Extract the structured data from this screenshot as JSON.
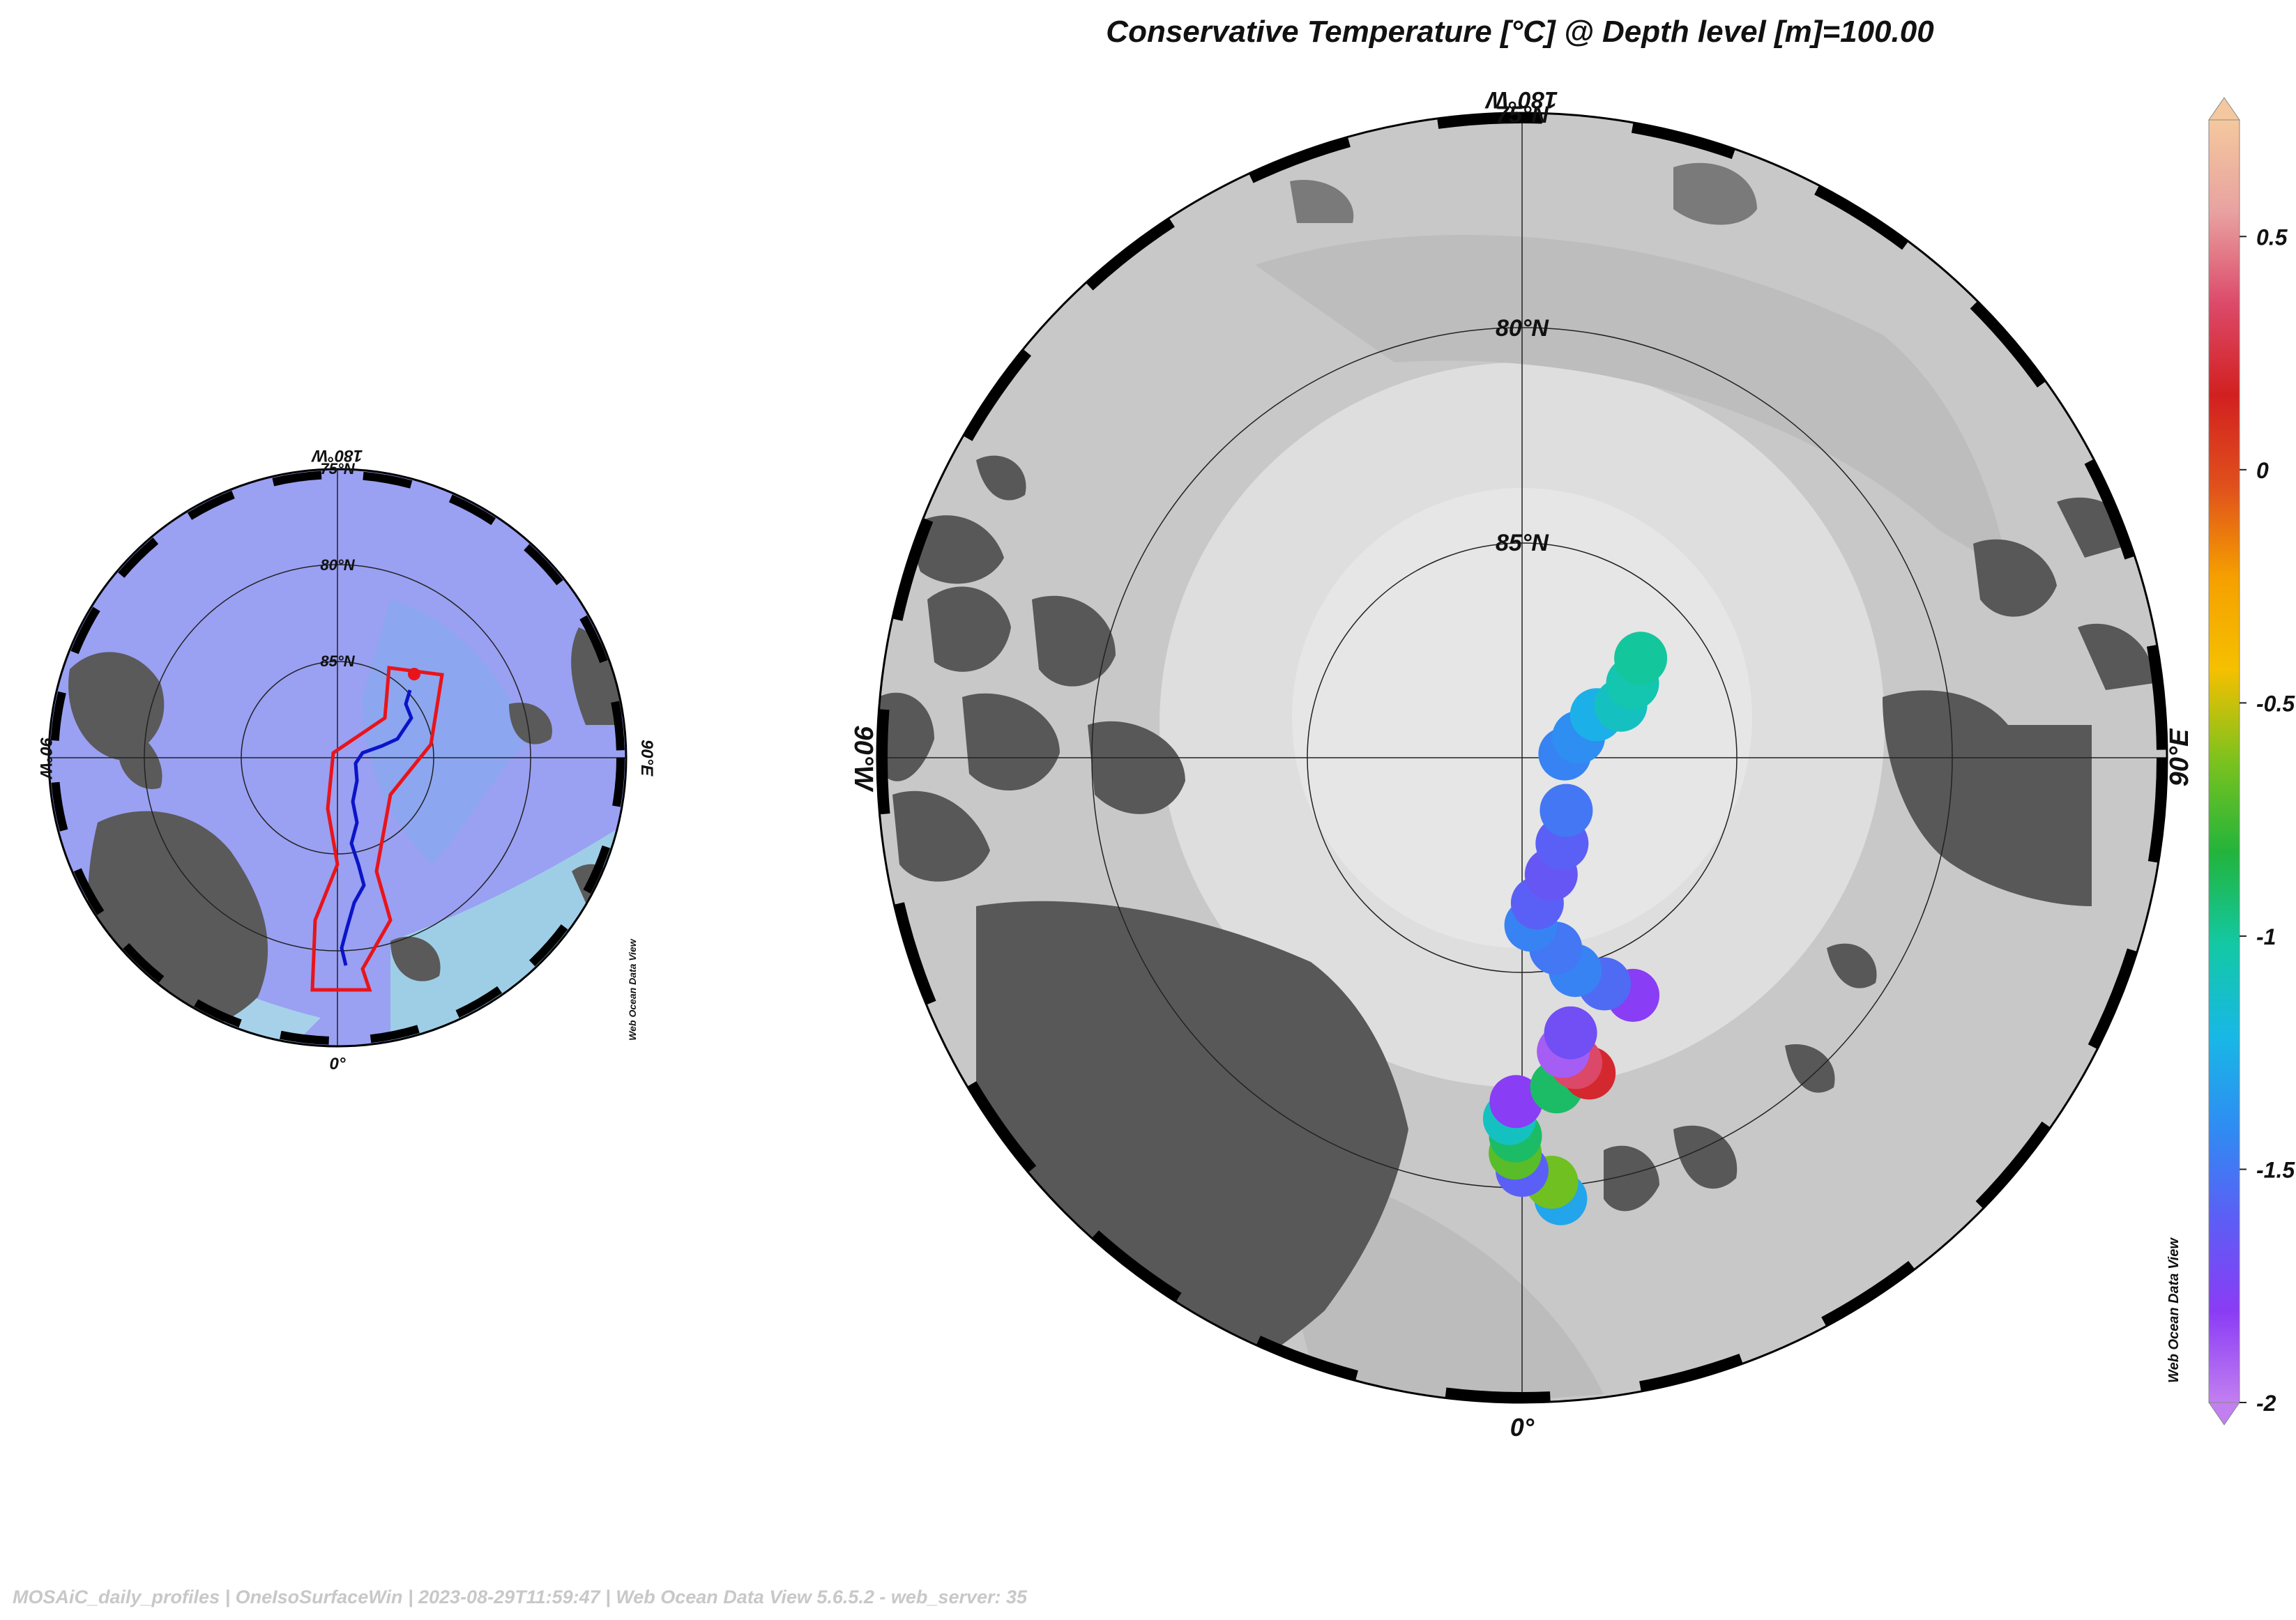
{
  "title": "Conservative Temperature [°C] @ Depth level [m]=100.00",
  "main_map": {
    "labels": {
      "top": "180°W",
      "bottom": "0°",
      "left": "90°W",
      "right": "90°E"
    },
    "circles": [
      "75°N",
      "80°N",
      "85°N"
    ]
  },
  "overview_map": {
    "labels": {
      "top": "180°W",
      "bottom": "0°",
      "left": "90°W",
      "right": "90°E"
    },
    "circles": [
      "75°N",
      "80°N",
      "85°N"
    ],
    "watermark": "Web Ocean Data View"
  },
  "colorbar": {
    "ticks": [
      "0.5",
      "0",
      "-0.5",
      "-1",
      "-1.5",
      "-2"
    ],
    "tick_values": [
      0.5,
      0,
      -0.5,
      -1,
      -1.5,
      -2
    ],
    "min": -2,
    "max": 0.75,
    "watermark": "Web Ocean Data View",
    "colors": [
      "#c27ff0",
      "#8a3cf5",
      "#5c5ef5",
      "#2f8cf2",
      "#18b8e6",
      "#13c8a4",
      "#22b43c",
      "#7bc21e",
      "#f5c000",
      "#f5a000",
      "#e0501c",
      "#d22020",
      "#dc4a6a",
      "#e8a2a0",
      "#f4c89e"
    ]
  },
  "footer": "MOSAiC_daily_profiles  |  OneIsoSurfaceWin  |  2023-08-29T11:59:47  |  Web Ocean Data View 5.6.5.2 - web_server: 35",
  "chart_data": {
    "type": "scatter",
    "title": "Conservative Temperature [°C] @ Depth level [m]=100.00",
    "projection": "north-polar-stereographic",
    "lat_range": [
      75,
      90
    ],
    "color_variable": "Conservative Temperature [°C]",
    "color_range": [
      -2,
      0.75
    ],
    "points": [
      {
        "lon": 5,
        "lat": 79.7,
        "value": -1.3
      },
      {
        "lon": 4,
        "lat": 80.1,
        "value": -0.65
      },
      {
        "lon": 0,
        "lat": 80.4,
        "value": -1.6
      },
      {
        "lon": -1,
        "lat": 80.8,
        "value": -0.7
      },
      {
        "lon": -1,
        "lat": 81.2,
        "value": -0.9
      },
      {
        "lon": -2,
        "lat": 81.6,
        "value": -1.1
      },
      {
        "lon": -1,
        "lat": 82.0,
        "value": -1.8
      },
      {
        "lon": 6,
        "lat": 82.3,
        "value": -0.9
      },
      {
        "lon": 12,
        "lat": 82.5,
        "value": 0.2
      },
      {
        "lon": 10,
        "lat": 82.8,
        "value": 0.35
      },
      {
        "lon": 8,
        "lat": 83.1,
        "value": -1.9
      },
      {
        "lon": 10,
        "lat": 83.5,
        "value": -1.7
      },
      {
        "lon": 25,
        "lat": 83.9,
        "value": -1.8
      },
      {
        "lon": 20,
        "lat": 84.4,
        "value": -1.55
      },
      {
        "lon": 14,
        "lat": 84.9,
        "value": -1.45
      },
      {
        "lon": 10,
        "lat": 85.5,
        "value": -1.5
      },
      {
        "lon": 3,
        "lat": 86.1,
        "value": -1.45
      },
      {
        "lon": 6,
        "lat": 86.6,
        "value": -1.6
      },
      {
        "lon": 14,
        "lat": 87.2,
        "value": -1.65
      },
      {
        "lon": 25,
        "lat": 87.8,
        "value": -1.6
      },
      {
        "lon": 40,
        "lat": 88.4,
        "value": -1.5
      },
      {
        "lon": 95,
        "lat": 89.0,
        "value": -1.45
      },
      {
        "lon": 110,
        "lat": 88.6,
        "value": -1.4
      },
      {
        "lon": 120,
        "lat": 88.0,
        "value": -1.25
      },
      {
        "lon": 118,
        "lat": 87.4,
        "value": -1.1
      },
      {
        "lon": 124,
        "lat": 86.9,
        "value": -1.05
      },
      {
        "lon": 130,
        "lat": 86.4,
        "value": -1.0
      }
    ]
  }
}
